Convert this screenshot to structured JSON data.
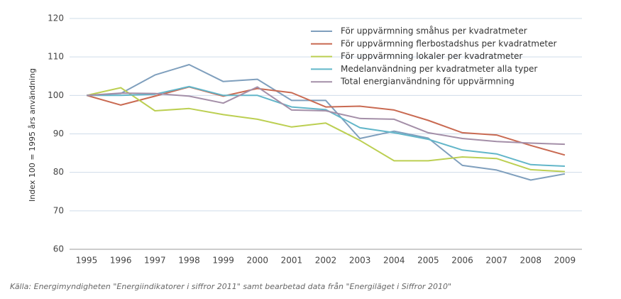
{
  "chart_data": {
    "type": "line",
    "y_label": "Index 100 = 1995 års användning",
    "source": "Källa: Energimyndigheten \"Energiindikatorer i siffror 2011\" samt bearbetad data från \"Energiläget i Siffror 2010\"",
    "categories": [
      "1995",
      "1996",
      "1997",
      "1998",
      "1999",
      "2000",
      "2001",
      "2002",
      "2003",
      "2004",
      "2005",
      "2006",
      "2007",
      "2008",
      "2009"
    ],
    "ylim": [
      60,
      120
    ],
    "yticks": [
      60,
      70,
      80,
      90,
      100,
      110,
      120
    ],
    "grid": true,
    "legend": "upper right",
    "series": [
      {
        "name": "För uppvärmning småhus per kvadratmeter",
        "color": "#7f9fbd",
        "values": [
          100,
          100.5,
          105.3,
          108,
          103.6,
          104.2,
          98.7,
          98.7,
          88.8,
          90.7,
          88.9,
          81.8,
          80.6,
          78,
          79.6
        ]
      },
      {
        "name": "För uppvärmning flerbostadshus per kvadratmeter",
        "color": "#c96a52",
        "values": [
          100,
          97.5,
          99.8,
          102.2,
          99.8,
          101.8,
          100.7,
          97,
          97.2,
          96.2,
          93.5,
          90.3,
          89.7,
          87,
          84.5
        ]
      },
      {
        "name": "För uppvärmning lokaler per kvadratmeter",
        "color": "#bccf52",
        "values": [
          100,
          102,
          96,
          96.6,
          95,
          93.8,
          91.8,
          92.8,
          88.3,
          83,
          83,
          84,
          83.6,
          80.7,
          80.2
        ]
      },
      {
        "name": "Medelanvändning per kvadratmeter alla typer",
        "color": "#62b6c9",
        "values": [
          100,
          100,
          100.3,
          102.3,
          100,
          100,
          97,
          96.3,
          91.6,
          90.3,
          88.6,
          85.8,
          84.8,
          82,
          81.6
        ]
      },
      {
        "name": "Total energianvändning för uppvärmning",
        "color": "#a48fa8",
        "values": [
          100,
          100.6,
          100.5,
          99.8,
          98,
          102.2,
          96.2,
          96,
          94,
          93.8,
          90.3,
          88.8,
          88,
          87.6,
          87.3
        ]
      }
    ]
  }
}
